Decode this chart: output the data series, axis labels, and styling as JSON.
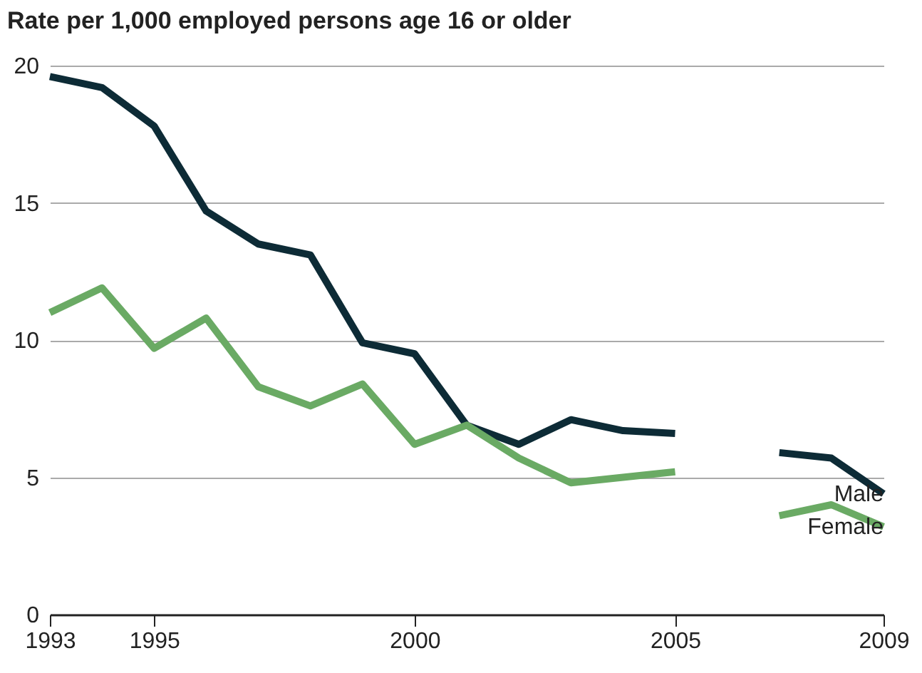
{
  "chart_data": {
    "type": "line",
    "ylabel": "Rate per 1,000 employed persons age 16 or older",
    "x": [
      1993,
      1994,
      1995,
      1996,
      1997,
      1998,
      1999,
      2000,
      2001,
      2002,
      2003,
      2004,
      2005,
      2006,
      2007,
      2008,
      2009
    ],
    "series": [
      {
        "name": "Male",
        "color": "#0d2b36",
        "values": [
          19.6,
          19.2,
          17.8,
          14.7,
          13.5,
          13.1,
          9.9,
          9.5,
          6.9,
          6.2,
          7.1,
          6.7,
          6.6,
          null,
          5.9,
          5.7,
          4.4
        ]
      },
      {
        "name": "Female",
        "color": "#6aaa64",
        "values": [
          11.0,
          11.9,
          9.7,
          10.8,
          8.3,
          7.6,
          8.4,
          6.2,
          6.9,
          5.7,
          4.8,
          5.0,
          5.2,
          null,
          3.6,
          4.0,
          3.2
        ]
      }
    ],
    "xlim": [
      1993,
      2009
    ],
    "xticks": [
      1993,
      1995,
      2000,
      2005,
      2009
    ],
    "ylim": [
      0,
      20
    ],
    "yticks": [
      0,
      5,
      10,
      15,
      20
    ],
    "grid": "y",
    "legend": false,
    "marker": "none",
    "line_style": "solid"
  }
}
